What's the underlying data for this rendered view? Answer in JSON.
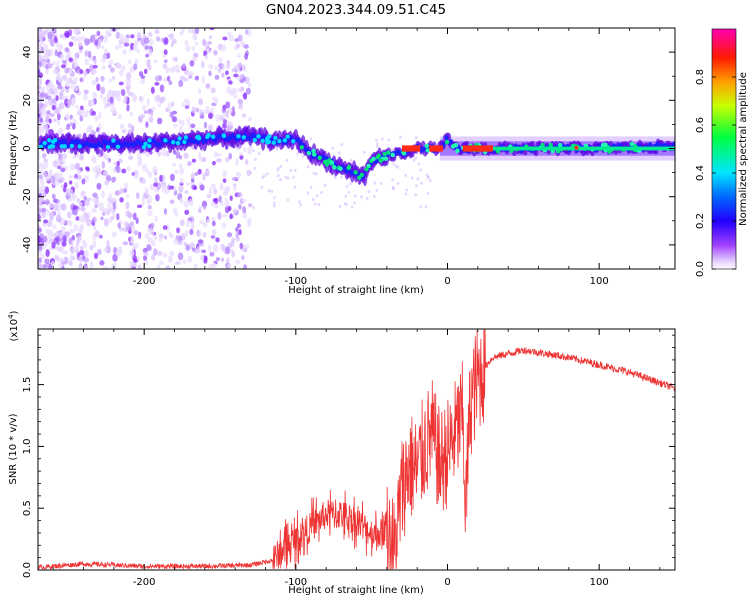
{
  "title": "GN04.2023.344.09.51.C45",
  "chart_data": [
    {
      "type": "heatmap",
      "xlabel": "Height of straight line (km)",
      "ylabel": "Frequency (Hz)",
      "xlim": [
        -270,
        150
      ],
      "ylim": [
        -50,
        50
      ],
      "xticks": [
        -200,
        -100,
        0,
        100
      ],
      "yticks": [
        -40,
        -20,
        0,
        20,
        40
      ],
      "colorbar": {
        "label": "Normalized spectral amplitude",
        "range": [
          0,
          1
        ],
        "ticks": [
          "0.0",
          "0.2",
          "0.4",
          "0.6",
          "0.8"
        ],
        "colormap": [
          "#ffffff",
          "#e0c8ff",
          "#8000ff",
          "#0000ff",
          "#00e5ff",
          "#00ff40",
          "#c8ff00",
          "#ffa000",
          "#ff0000",
          "#ff00b0"
        ]
      },
      "ridge": {
        "x": [
          -270,
          -240,
          -200,
          -160,
          -130,
          -110,
          -100,
          -90,
          -80,
          -70,
          -60,
          -55,
          -50,
          -40,
          -30,
          -20,
          -10,
          -5,
          0,
          5,
          20,
          50,
          100,
          150
        ],
        "freq": [
          2,
          2,
          2,
          4,
          5,
          3,
          4,
          -2,
          -5,
          -8,
          -10,
          -12,
          -5,
          -3,
          -2,
          0,
          0,
          0,
          4,
          0,
          0,
          0,
          0,
          1
        ]
      }
    },
    {
      "type": "line",
      "xlabel": "Height of straight line (km)",
      "ylabel": "SNR (10 * v/v)",
      "multiplier": "(x10",
      "multiplier_exp": "4",
      "xlim": [
        -270,
        150
      ],
      "ylim": [
        0,
        1.95
      ],
      "xticks": [
        -200,
        -100,
        0,
        100
      ],
      "yticks": [
        "0.0",
        "0.5",
        "1.0",
        "1.5"
      ],
      "color": "#ee3333",
      "series": [
        {
          "x": [
            -270,
            -240,
            -200,
            -160,
            -130,
            -115,
            -110,
            -100,
            -90,
            -80,
            -70,
            -60,
            -50,
            -40,
            -35,
            -30,
            -25,
            -20,
            -15,
            -10,
            -5,
            0,
            5,
            10,
            12,
            15,
            20,
            25,
            30,
            40,
            50,
            60,
            80,
            100,
            120,
            150
          ],
          "y": [
            0.02,
            0.05,
            0.03,
            0.03,
            0.04,
            0.08,
            0.15,
            0.25,
            0.35,
            0.45,
            0.45,
            0.4,
            0.3,
            0.3,
            0.15,
            0.65,
            0.85,
            0.8,
            1.0,
            1.1,
            0.85,
            0.95,
            1.1,
            1.25,
            0.5,
            1.35,
            1.55,
            1.65,
            1.72,
            1.75,
            1.78,
            1.76,
            1.72,
            1.66,
            1.6,
            1.47
          ]
        }
      ]
    }
  ]
}
